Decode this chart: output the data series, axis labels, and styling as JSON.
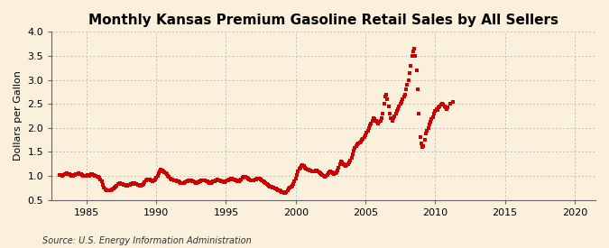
{
  "title": "Monthly Kansas Premium Gasoline Retail Sales by All Sellers",
  "ylabel": "Dollars per Gallon",
  "source": "Source: U.S. Energy Information Administration",
  "xlim": [
    1982.5,
    2021.5
  ],
  "ylim": [
    0.5,
    4.0
  ],
  "xticks": [
    1985,
    1990,
    1995,
    2000,
    2005,
    2010,
    2015,
    2020
  ],
  "yticks": [
    0.5,
    1.0,
    1.5,
    2.0,
    2.5,
    3.0,
    3.5,
    4.0
  ],
  "dot_color": "#cc0000",
  "background_color": "#faf0dc",
  "grid_color": "#b0b0b0",
  "title_fontsize": 11,
  "label_fontsize": 8,
  "tick_fontsize": 8,
  "data": [
    [
      1983.083,
      1.02
    ],
    [
      1983.167,
      1.02
    ],
    [
      1983.25,
      1.01
    ],
    [
      1983.333,
      1.02
    ],
    [
      1983.417,
      1.03
    ],
    [
      1983.5,
      1.04
    ],
    [
      1983.583,
      1.05
    ],
    [
      1983.667,
      1.04
    ],
    [
      1983.75,
      1.03
    ],
    [
      1983.833,
      1.02
    ],
    [
      1983.917,
      1.01
    ],
    [
      1984.0,
      1.01
    ],
    [
      1984.083,
      1.02
    ],
    [
      1984.167,
      1.02
    ],
    [
      1984.25,
      1.03
    ],
    [
      1984.333,
      1.04
    ],
    [
      1984.417,
      1.05
    ],
    [
      1984.5,
      1.04
    ],
    [
      1984.583,
      1.03
    ],
    [
      1984.667,
      1.02
    ],
    [
      1984.75,
      1.01
    ],
    [
      1984.833,
      1.0
    ],
    [
      1984.917,
      1.0
    ],
    [
      1985.0,
      1.01
    ],
    [
      1985.083,
      1.02
    ],
    [
      1985.167,
      1.01
    ],
    [
      1985.25,
      1.02
    ],
    [
      1985.333,
      1.03
    ],
    [
      1985.417,
      1.04
    ],
    [
      1985.5,
      1.02
    ],
    [
      1985.583,
      1.01
    ],
    [
      1985.667,
      1.0
    ],
    [
      1985.75,
      0.99
    ],
    [
      1985.833,
      0.98
    ],
    [
      1985.917,
      0.96
    ],
    [
      1986.0,
      0.93
    ],
    [
      1986.083,
      0.88
    ],
    [
      1986.167,
      0.82
    ],
    [
      1986.25,
      0.76
    ],
    [
      1986.333,
      0.72
    ],
    [
      1986.417,
      0.7
    ],
    [
      1986.5,
      0.7
    ],
    [
      1986.583,
      0.71
    ],
    [
      1986.667,
      0.7
    ],
    [
      1986.75,
      0.7
    ],
    [
      1986.833,
      0.72
    ],
    [
      1986.917,
      0.74
    ],
    [
      1987.0,
      0.76
    ],
    [
      1987.083,
      0.78
    ],
    [
      1987.167,
      0.8
    ],
    [
      1987.25,
      0.83
    ],
    [
      1987.333,
      0.84
    ],
    [
      1987.417,
      0.85
    ],
    [
      1987.5,
      0.84
    ],
    [
      1987.583,
      0.83
    ],
    [
      1987.667,
      0.82
    ],
    [
      1987.75,
      0.81
    ],
    [
      1987.833,
      0.8
    ],
    [
      1987.917,
      0.8
    ],
    [
      1988.0,
      0.81
    ],
    [
      1988.083,
      0.82
    ],
    [
      1988.167,
      0.83
    ],
    [
      1988.25,
      0.84
    ],
    [
      1988.333,
      0.85
    ],
    [
      1988.417,
      0.85
    ],
    [
      1988.5,
      0.84
    ],
    [
      1988.583,
      0.83
    ],
    [
      1988.667,
      0.82
    ],
    [
      1988.75,
      0.81
    ],
    [
      1988.833,
      0.8
    ],
    [
      1988.917,
      0.8
    ],
    [
      1989.0,
      0.82
    ],
    [
      1989.083,
      0.84
    ],
    [
      1989.167,
      0.87
    ],
    [
      1989.25,
      0.9
    ],
    [
      1989.333,
      0.92
    ],
    [
      1989.417,
      0.93
    ],
    [
      1989.5,
      0.92
    ],
    [
      1989.583,
      0.91
    ],
    [
      1989.667,
      0.9
    ],
    [
      1989.75,
      0.89
    ],
    [
      1989.833,
      0.9
    ],
    [
      1989.917,
      0.92
    ],
    [
      1990.0,
      0.96
    ],
    [
      1990.083,
      1.0
    ],
    [
      1990.167,
      1.05
    ],
    [
      1990.25,
      1.1
    ],
    [
      1990.333,
      1.13
    ],
    [
      1990.417,
      1.12
    ],
    [
      1990.5,
      1.1
    ],
    [
      1990.583,
      1.08
    ],
    [
      1990.667,
      1.05
    ],
    [
      1990.75,
      1.03
    ],
    [
      1990.833,
      1.01
    ],
    [
      1990.917,
      0.98
    ],
    [
      1991.0,
      0.95
    ],
    [
      1991.083,
      0.93
    ],
    [
      1991.167,
      0.92
    ],
    [
      1991.25,
      0.91
    ],
    [
      1991.333,
      0.9
    ],
    [
      1991.417,
      0.9
    ],
    [
      1991.5,
      0.89
    ],
    [
      1991.583,
      0.88
    ],
    [
      1991.667,
      0.87
    ],
    [
      1991.75,
      0.86
    ],
    [
      1991.833,
      0.85
    ],
    [
      1991.917,
      0.85
    ],
    [
      1992.0,
      0.86
    ],
    [
      1992.083,
      0.87
    ],
    [
      1992.167,
      0.88
    ],
    [
      1992.25,
      0.89
    ],
    [
      1992.333,
      0.9
    ],
    [
      1992.417,
      0.91
    ],
    [
      1992.5,
      0.9
    ],
    [
      1992.583,
      0.89
    ],
    [
      1992.667,
      0.88
    ],
    [
      1992.75,
      0.87
    ],
    [
      1992.833,
      0.86
    ],
    [
      1992.917,
      0.86
    ],
    [
      1993.0,
      0.87
    ],
    [
      1993.083,
      0.88
    ],
    [
      1993.167,
      0.89
    ],
    [
      1993.25,
      0.9
    ],
    [
      1993.333,
      0.91
    ],
    [
      1993.417,
      0.91
    ],
    [
      1993.5,
      0.9
    ],
    [
      1993.583,
      0.89
    ],
    [
      1993.667,
      0.88
    ],
    [
      1993.75,
      0.87
    ],
    [
      1993.833,
      0.86
    ],
    [
      1993.917,
      0.86
    ],
    [
      1994.0,
      0.87
    ],
    [
      1994.083,
      0.88
    ],
    [
      1994.167,
      0.89
    ],
    [
      1994.25,
      0.9
    ],
    [
      1994.333,
      0.91
    ],
    [
      1994.417,
      0.92
    ],
    [
      1994.5,
      0.91
    ],
    [
      1994.583,
      0.9
    ],
    [
      1994.667,
      0.89
    ],
    [
      1994.75,
      0.88
    ],
    [
      1994.833,
      0.87
    ],
    [
      1994.917,
      0.87
    ],
    [
      1995.0,
      0.88
    ],
    [
      1995.083,
      0.9
    ],
    [
      1995.167,
      0.91
    ],
    [
      1995.25,
      0.93
    ],
    [
      1995.333,
      0.94
    ],
    [
      1995.417,
      0.94
    ],
    [
      1995.5,
      0.93
    ],
    [
      1995.583,
      0.92
    ],
    [
      1995.667,
      0.91
    ],
    [
      1995.75,
      0.9
    ],
    [
      1995.833,
      0.89
    ],
    [
      1995.917,
      0.88
    ],
    [
      1996.0,
      0.9
    ],
    [
      1996.083,
      0.93
    ],
    [
      1996.167,
      0.96
    ],
    [
      1996.25,
      0.98
    ],
    [
      1996.333,
      0.99
    ],
    [
      1996.417,
      0.98
    ],
    [
      1996.5,
      0.96
    ],
    [
      1996.583,
      0.94
    ],
    [
      1996.667,
      0.92
    ],
    [
      1996.75,
      0.91
    ],
    [
      1996.833,
      0.9
    ],
    [
      1996.917,
      0.9
    ],
    [
      1997.0,
      0.91
    ],
    [
      1997.083,
      0.92
    ],
    [
      1997.167,
      0.93
    ],
    [
      1997.25,
      0.94
    ],
    [
      1997.333,
      0.94
    ],
    [
      1997.417,
      0.94
    ],
    [
      1997.5,
      0.93
    ],
    [
      1997.583,
      0.91
    ],
    [
      1997.667,
      0.89
    ],
    [
      1997.75,
      0.87
    ],
    [
      1997.833,
      0.85
    ],
    [
      1997.917,
      0.83
    ],
    [
      1998.0,
      0.81
    ],
    [
      1998.083,
      0.8
    ],
    [
      1998.167,
      0.78
    ],
    [
      1998.25,
      0.77
    ],
    [
      1998.333,
      0.76
    ],
    [
      1998.417,
      0.75
    ],
    [
      1998.5,
      0.74
    ],
    [
      1998.583,
      0.73
    ],
    [
      1998.667,
      0.72
    ],
    [
      1998.75,
      0.71
    ],
    [
      1998.833,
      0.7
    ],
    [
      1998.917,
      0.68
    ],
    [
      1999.0,
      0.67
    ],
    [
      1999.083,
      0.66
    ],
    [
      1999.167,
      0.65
    ],
    [
      1999.25,
      0.65
    ],
    [
      1999.333,
      0.67
    ],
    [
      1999.417,
      0.7
    ],
    [
      1999.5,
      0.73
    ],
    [
      1999.583,
      0.76
    ],
    [
      1999.667,
      0.78
    ],
    [
      1999.75,
      0.8
    ],
    [
      1999.833,
      0.83
    ],
    [
      1999.917,
      0.88
    ],
    [
      2000.0,
      0.95
    ],
    [
      2000.083,
      1.02
    ],
    [
      2000.167,
      1.1
    ],
    [
      2000.25,
      1.15
    ],
    [
      2000.333,
      1.18
    ],
    [
      2000.417,
      1.2
    ],
    [
      2000.5,
      1.22
    ],
    [
      2000.583,
      1.2
    ],
    [
      2000.667,
      1.18
    ],
    [
      2000.75,
      1.16
    ],
    [
      2000.833,
      1.14
    ],
    [
      2000.917,
      1.13
    ],
    [
      2001.0,
      1.12
    ],
    [
      2001.083,
      1.11
    ],
    [
      2001.167,
      1.1
    ],
    [
      2001.25,
      1.09
    ],
    [
      2001.333,
      1.1
    ],
    [
      2001.417,
      1.11
    ],
    [
      2001.5,
      1.12
    ],
    [
      2001.583,
      1.1
    ],
    [
      2001.667,
      1.08
    ],
    [
      2001.75,
      1.06
    ],
    [
      2001.833,
      1.04
    ],
    [
      2001.917,
      1.02
    ],
    [
      2002.0,
      1.0
    ],
    [
      2002.083,
      0.98
    ],
    [
      2002.167,
      1.0
    ],
    [
      2002.25,
      1.02
    ],
    [
      2002.333,
      1.05
    ],
    [
      2002.417,
      1.08
    ],
    [
      2002.5,
      1.1
    ],
    [
      2002.583,
      1.08
    ],
    [
      2002.667,
      1.06
    ],
    [
      2002.75,
      1.04
    ],
    [
      2002.833,
      1.05
    ],
    [
      2002.917,
      1.08
    ],
    [
      2003.0,
      1.12
    ],
    [
      2003.083,
      1.18
    ],
    [
      2003.167,
      1.25
    ],
    [
      2003.25,
      1.3
    ],
    [
      2003.333,
      1.28
    ],
    [
      2003.417,
      1.25
    ],
    [
      2003.5,
      1.22
    ],
    [
      2003.583,
      1.2
    ],
    [
      2003.667,
      1.22
    ],
    [
      2003.75,
      1.25
    ],
    [
      2003.833,
      1.28
    ],
    [
      2003.917,
      1.32
    ],
    [
      2004.0,
      1.38
    ],
    [
      2004.083,
      1.45
    ],
    [
      2004.167,
      1.52
    ],
    [
      2004.25,
      1.58
    ],
    [
      2004.333,
      1.62
    ],
    [
      2004.417,
      1.65
    ],
    [
      2004.5,
      1.68
    ],
    [
      2004.583,
      1.7
    ],
    [
      2004.667,
      1.72
    ],
    [
      2004.75,
      1.75
    ],
    [
      2004.833,
      1.78
    ],
    [
      2004.917,
      1.8
    ],
    [
      2005.0,
      1.85
    ],
    [
      2005.083,
      1.9
    ],
    [
      2005.167,
      1.95
    ],
    [
      2005.25,
      2.0
    ],
    [
      2005.333,
      2.05
    ],
    [
      2005.417,
      2.1
    ],
    [
      2005.5,
      2.15
    ],
    [
      2005.583,
      2.2
    ],
    [
      2005.667,
      2.18
    ],
    [
      2005.75,
      2.15
    ],
    [
      2005.833,
      2.12
    ],
    [
      2005.917,
      2.1
    ],
    [
      2006.0,
      2.12
    ],
    [
      2006.083,
      2.15
    ],
    [
      2006.167,
      2.2
    ],
    [
      2006.25,
      2.3
    ],
    [
      2006.333,
      2.5
    ],
    [
      2006.417,
      2.65
    ],
    [
      2006.5,
      2.7
    ],
    [
      2006.583,
      2.6
    ],
    [
      2006.667,
      2.45
    ],
    [
      2006.75,
      2.3
    ],
    [
      2006.833,
      2.2
    ],
    [
      2006.917,
      2.15
    ],
    [
      2007.0,
      2.2
    ],
    [
      2007.083,
      2.25
    ],
    [
      2007.167,
      2.3
    ],
    [
      2007.25,
      2.35
    ],
    [
      2007.333,
      2.4
    ],
    [
      2007.417,
      2.45
    ],
    [
      2007.5,
      2.5
    ],
    [
      2007.583,
      2.55
    ],
    [
      2007.667,
      2.6
    ],
    [
      2007.75,
      2.65
    ],
    [
      2007.833,
      2.7
    ],
    [
      2007.917,
      2.8
    ],
    [
      2008.0,
      2.9
    ],
    [
      2008.083,
      3.0
    ],
    [
      2008.167,
      3.15
    ],
    [
      2008.25,
      3.3
    ],
    [
      2008.333,
      3.5
    ],
    [
      2008.417,
      3.6
    ],
    [
      2008.5,
      3.65
    ],
    [
      2008.583,
      3.5
    ],
    [
      2008.667,
      3.2
    ],
    [
      2008.75,
      2.8
    ],
    [
      2008.833,
      2.3
    ],
    [
      2008.917,
      1.8
    ],
    [
      2009.0,
      1.68
    ],
    [
      2009.083,
      1.6
    ],
    [
      2009.167,
      1.62
    ],
    [
      2009.25,
      1.75
    ],
    [
      2009.333,
      1.88
    ],
    [
      2009.417,
      1.95
    ],
    [
      2009.5,
      2.0
    ],
    [
      2009.583,
      2.08
    ],
    [
      2009.667,
      2.12
    ],
    [
      2009.75,
      2.18
    ],
    [
      2009.833,
      2.22
    ],
    [
      2009.917,
      2.3
    ],
    [
      2010.0,
      2.35
    ],
    [
      2010.083,
      2.4
    ],
    [
      2010.167,
      2.38
    ],
    [
      2010.25,
      2.42
    ],
    [
      2010.333,
      2.45
    ],
    [
      2010.417,
      2.48
    ],
    [
      2010.5,
      2.5
    ],
    [
      2010.583,
      2.48
    ],
    [
      2010.667,
      2.45
    ],
    [
      2010.75,
      2.42
    ],
    [
      2010.833,
      2.4
    ],
    [
      2010.917,
      2.42
    ],
    [
      2011.083,
      2.5
    ],
    [
      2011.25,
      2.55
    ]
  ]
}
